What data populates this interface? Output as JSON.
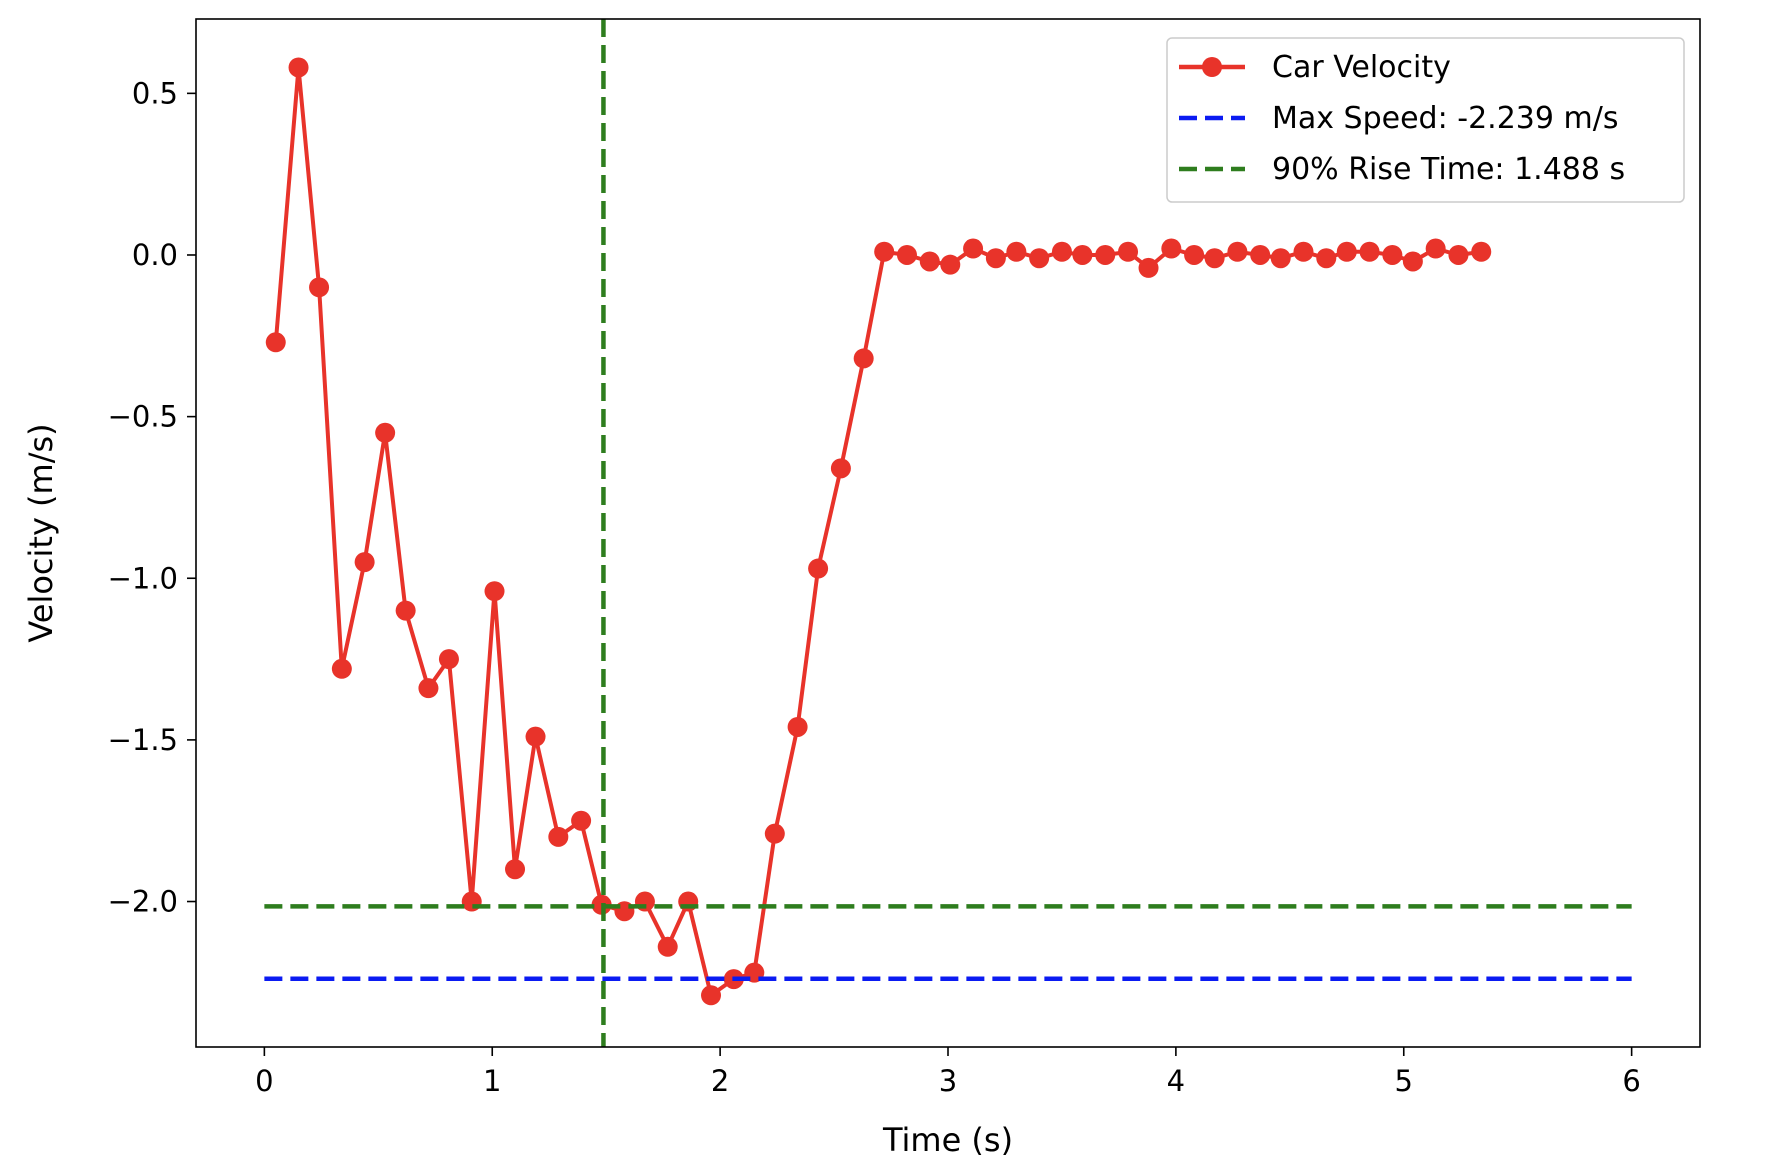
{
  "chart_data": {
    "type": "line",
    "title": "",
    "xlabel": "Time (s)",
    "ylabel": "Velocity (m/s)",
    "xlim": [
      -0.3,
      6.3
    ],
    "ylim": [
      -2.45,
      0.73
    ],
    "x_ticks": [
      {
        "value": 0,
        "label": "0"
      },
      {
        "value": 1,
        "label": "1"
      },
      {
        "value": 2,
        "label": "2"
      },
      {
        "value": 3,
        "label": "3"
      },
      {
        "value": 4,
        "label": "4"
      },
      {
        "value": 5,
        "label": "5"
      },
      {
        "value": 6,
        "label": "6"
      }
    ],
    "y_ticks": [
      {
        "value": 0.5,
        "label": "0.5"
      },
      {
        "value": 0.0,
        "label": "0.0"
      },
      {
        "value": -0.5,
        "label": "−0.5"
      },
      {
        "value": -1.0,
        "label": "−1.0"
      },
      {
        "value": -1.5,
        "label": "−1.5"
      },
      {
        "value": -2.0,
        "label": "−2.0"
      }
    ],
    "grid": false,
    "legend_position": "top-right",
    "series": [
      {
        "name": "Car Velocity",
        "color": "#e8332a",
        "style": "solid",
        "marker": "circle",
        "x": [
          0.05,
          0.15,
          0.24,
          0.34,
          0.44,
          0.53,
          0.62,
          0.72,
          0.81,
          0.91,
          1.01,
          1.1,
          1.19,
          1.29,
          1.39,
          1.48,
          1.58,
          1.67,
          1.77,
          1.86,
          1.96,
          2.06,
          2.15,
          2.24,
          2.34,
          2.43,
          2.53,
          2.63,
          2.72,
          2.82,
          2.92,
          3.01,
          3.11,
          3.21,
          3.3,
          3.4,
          3.5,
          3.59,
          3.69,
          3.79,
          3.88,
          3.98,
          4.08,
          4.17,
          4.27,
          4.37,
          4.46,
          4.56,
          4.66,
          4.75,
          4.85,
          4.95,
          5.04,
          5.14,
          5.24,
          5.34
        ],
        "y": [
          -0.27,
          0.58,
          -0.1,
          -1.28,
          -0.95,
          -0.55,
          -1.1,
          -1.34,
          -1.25,
          -2.0,
          -1.04,
          -1.9,
          -1.49,
          -1.8,
          -1.75,
          -2.01,
          -2.03,
          -2.0,
          -2.14,
          -2.0,
          -2.29,
          -2.24,
          -2.22,
          -1.79,
          -1.46,
          -0.97,
          -0.66,
          -0.32,
          0.01,
          0.0,
          -0.02,
          -0.03,
          0.02,
          -0.01,
          0.01,
          -0.01,
          0.01,
          0.0,
          0.0,
          0.01,
          -0.04,
          0.02,
          0.0,
          -0.01,
          0.01,
          0.0,
          -0.01,
          0.01,
          -0.01,
          0.01,
          0.01,
          0.0,
          -0.02,
          0.02,
          0.0,
          0.01
        ]
      },
      {
        "name": "Max Speed: -2.239 m/s",
        "color": "#0b1bf2",
        "style": "dashed",
        "orientation": "horizontal",
        "value": -2.239,
        "x_range": [
          0,
          6
        ]
      },
      {
        "name": "90% Rise Time: 1.488 s",
        "color": "#2e7d1e",
        "style": "dashed",
        "orientation": "vertical",
        "value": 1.488
      },
      {
        "name": "",
        "color": "#2e7d1e",
        "style": "dashed",
        "orientation": "horizontal",
        "value": -2.015,
        "x_range": [
          0,
          6
        ]
      }
    ]
  }
}
